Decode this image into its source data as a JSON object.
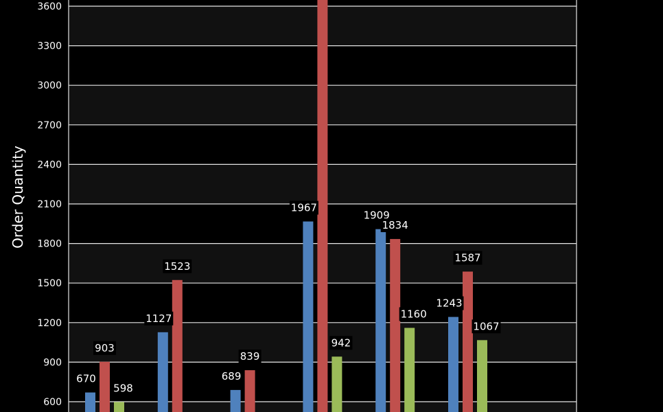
{
  "chart_data": {
    "type": "bar",
    "title": "",
    "xlabel": "",
    "ylabel": "Order Quantity",
    "ylim": [
      600,
      3600
    ],
    "yticks": [
      600,
      900,
      1200,
      1500,
      1800,
      2100,
      2400,
      2700,
      3000,
      3300,
      3600
    ],
    "grid": true,
    "categories": [
      "",
      "",
      "",
      "",
      "",
      "",
      ""
    ],
    "series": [
      {
        "color": "#4F81BD",
        "values": [
          670,
          1127,
          689,
          1967,
          1909,
          1243,
          null
        ]
      },
      {
        "color": "#C0504D",
        "values": [
          903,
          1523,
          839,
          3700,
          1834,
          1587,
          null
        ]
      },
      {
        "color": "#9BBB59",
        "values": [
          598,
          null,
          null,
          942,
          1160,
          1067,
          null
        ]
      }
    ],
    "data_labels": [
      [
        "670",
        "1127",
        "689",
        "1967",
        "1909",
        "1243",
        null
      ],
      [
        "903",
        "1523",
        "839",
        null,
        "1834",
        "1587",
        null
      ],
      [
        "598",
        null,
        null,
        "942",
        "1160",
        "1067",
        null
      ]
    ]
  }
}
